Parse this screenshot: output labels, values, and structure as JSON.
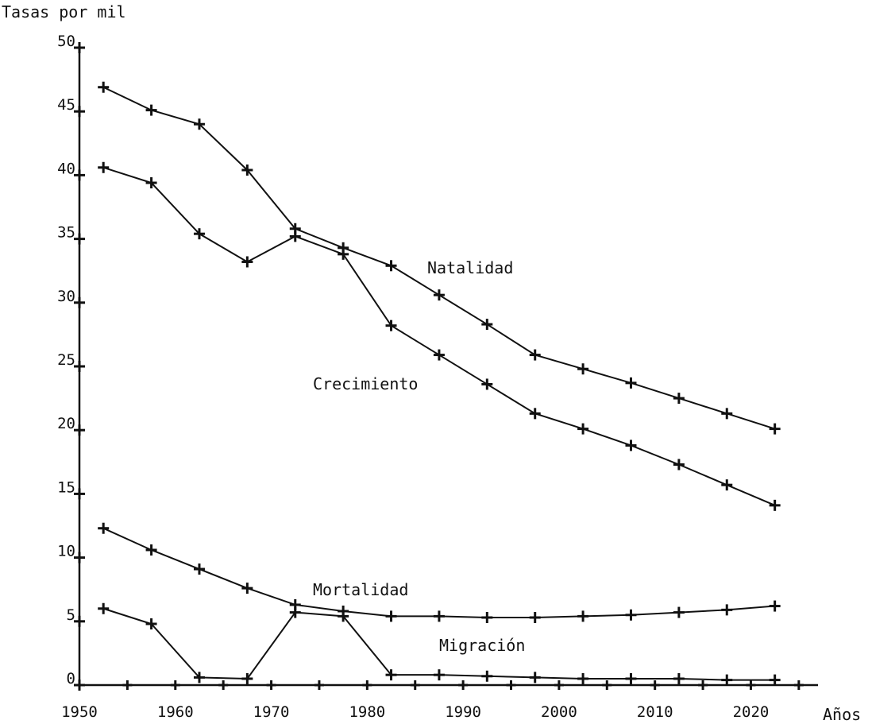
{
  "chart_data": {
    "type": "line",
    "title": "",
    "ylabel": "Tasas por mil",
    "xlabel": "Años",
    "xlim": [
      1950,
      2027
    ],
    "ylim": [
      0,
      50
    ],
    "grid": false,
    "x_ticks": [
      1950,
      1960,
      1970,
      1980,
      1990,
      2000,
      2010,
      2020
    ],
    "y_ticks": [
      0,
      5,
      10,
      15,
      20,
      25,
      30,
      35,
      40,
      45,
      50
    ],
    "x": [
      1952.5,
      1957.5,
      1962.5,
      1967.5,
      1972.5,
      1977.5,
      1982.5,
      1987.5,
      1992.5,
      1997.5,
      2002.5,
      2007.5,
      2012.5,
      2017.5,
      2022.5
    ],
    "series": [
      {
        "name": "Natalidad",
        "values": [
          46.9,
          45.1,
          44.0,
          40.4,
          35.8,
          34.3,
          32.9,
          30.6,
          28.3,
          25.9,
          24.8,
          23.7,
          22.5,
          21.3,
          20.1
        ]
      },
      {
        "name": "Crecimiento",
        "values": [
          40.6,
          39.4,
          35.4,
          33.2,
          35.2,
          33.8,
          28.2,
          25.9,
          23.6,
          21.3,
          20.1,
          18.8,
          17.3,
          15.7,
          14.1
        ]
      },
      {
        "name": "Mortalidad",
        "values": [
          12.3,
          10.6,
          9.1,
          7.6,
          6.3,
          5.8,
          5.4,
          5.4,
          5.3,
          5.3,
          5.4,
          5.5,
          5.7,
          5.9,
          6.2
        ]
      },
      {
        "name": "Migración",
        "values": [
          6.0,
          4.8,
          0.6,
          0.5,
          5.7,
          5.4,
          0.8,
          0.8,
          0.7,
          0.6,
          0.5,
          0.5,
          0.5,
          0.4,
          0.4
        ]
      }
    ]
  }
}
